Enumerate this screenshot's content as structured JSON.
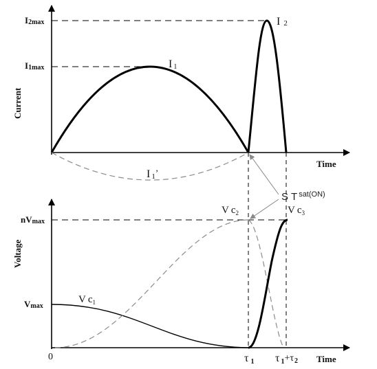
{
  "top": {
    "ylabel": "Current",
    "xlabel": "Time",
    "y_ticks": {
      "i2max_base": "I",
      "i2max_sub": "2max",
      "i1max_base": "I",
      "i1max_sub": "1max"
    },
    "curve_labels": {
      "i1_base": "I",
      "i1_sub": "1",
      "i2_base": "I",
      "i2_sub": "2",
      "i1p_base": "I",
      "i1p_sub": "1",
      "i1p_prime": "’"
    }
  },
  "bottom": {
    "ylabel": "Voltage",
    "xlabel": "Time",
    "y_ticks": {
      "nvmax_base": "nV",
      "nvmax_sub": "max",
      "vmax_base": "V",
      "vmax_sub": "max"
    },
    "curve_labels": {
      "vc1_base": "V",
      "vc1_c": "c",
      "vc1_sub": "1",
      "vc2_base": "V",
      "vc2_c": "c",
      "vc2_sub": "2",
      "vc3_base": "V",
      "vc3_c": "c",
      "vc3_sub": "3"
    },
    "x_ticks": {
      "origin": "0",
      "tau1_base": "τ",
      "tau1_sub": "1",
      "tau12_base": "τ",
      "tau12_sub1": "1",
      "tau12_plus": "+τ",
      "tau12_sub2": "2"
    }
  },
  "annotation": {
    "st_base": "S",
    "st_t": "T",
    "st_sup": "sat(ON)"
  },
  "colors": {
    "line": "#000000",
    "dashed": "#8a8a8a",
    "text": "#111111"
  }
}
